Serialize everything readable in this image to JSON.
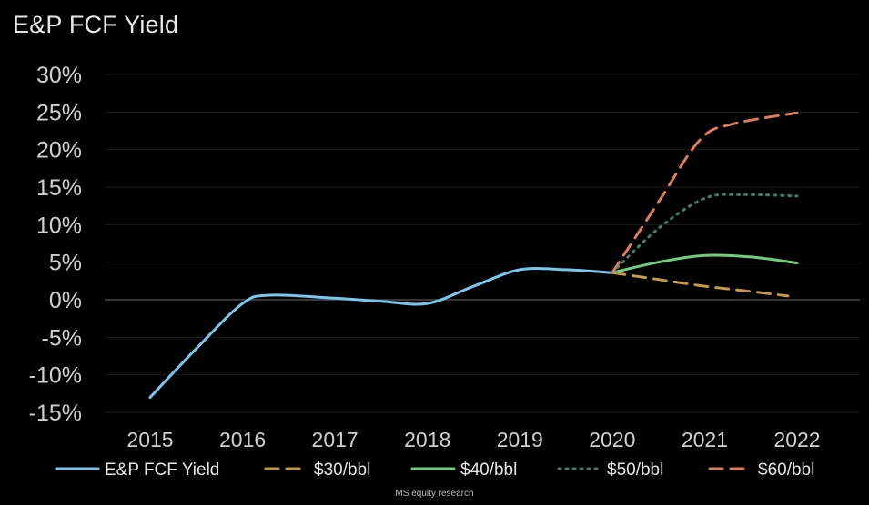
{
  "chart_data": {
    "type": "line",
    "title": "E&P FCF Yield",
    "xlabel": "",
    "ylabel": "",
    "x_ticks": [
      "2015",
      "2016",
      "2017",
      "2018",
      "2019",
      "2020",
      "2021",
      "2022"
    ],
    "y_ticks": [
      "30%",
      "25%",
      "20%",
      "15%",
      "10%",
      "5%",
      "0%",
      "-5%",
      "-10%",
      "-15%"
    ],
    "ylim": [
      -15,
      30
    ],
    "xlim": [
      2015,
      2022
    ],
    "grid": "horizontal",
    "legend_position": "bottom",
    "series": [
      {
        "name": "E&P FCF Yield",
        "color": "#79c6ee",
        "style": "solid",
        "x": [
          2015,
          2015.5,
          2016,
          2016.3,
          2017,
          2017.5,
          2018,
          2018.5,
          2019,
          2019.5,
          2020
        ],
        "y": [
          -13.0,
          -6.5,
          -0.5,
          0.6,
          0.2,
          -0.2,
          -0.5,
          1.8,
          4.0,
          4.0,
          3.6
        ]
      },
      {
        "name": "$30/bbl",
        "color": "#c49a45",
        "style": "dashed",
        "x": [
          2020,
          2020.5,
          2021,
          2021.5,
          2021.9
        ],
        "y": [
          3.6,
          2.7,
          1.8,
          1.1,
          0.5
        ]
      },
      {
        "name": "$40/bbl",
        "color": "#6fce7d",
        "style": "solid",
        "x": [
          2020,
          2020.5,
          2021,
          2021.5,
          2022
        ],
        "y": [
          3.6,
          5.0,
          5.9,
          5.7,
          4.9
        ]
      },
      {
        "name": "$50/bbl",
        "color": "#3f7f67",
        "style": "dotted",
        "x": [
          2020,
          2020.5,
          2021,
          2021.4,
          2022
        ],
        "y": [
          3.6,
          9.5,
          13.5,
          14.0,
          13.8
        ]
      },
      {
        "name": "$60/bbl",
        "color": "#e07a58",
        "style": "dashed",
        "x": [
          2020,
          2020.5,
          2020.95,
          2021.3,
          2022
        ],
        "y": [
          3.6,
          13.0,
          21.3,
          23.4,
          24.9
        ]
      }
    ]
  },
  "source_note": "MS equity research"
}
